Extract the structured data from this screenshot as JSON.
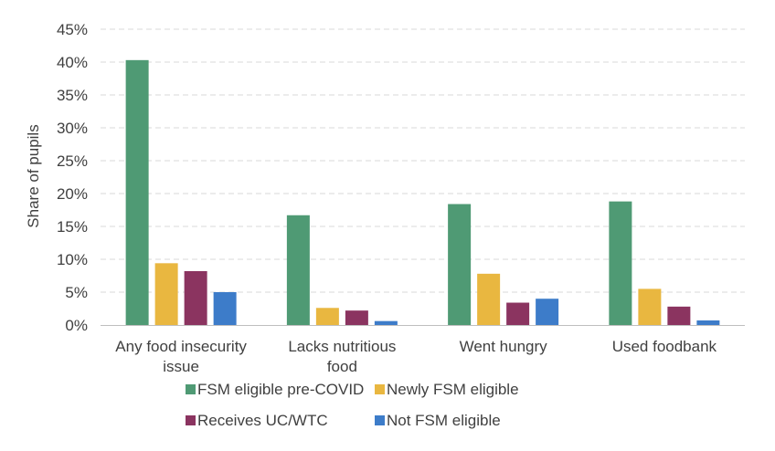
{
  "chart_data": {
    "type": "bar",
    "title": "",
    "xlabel": "",
    "ylabel": "Share of pupils",
    "ylim": [
      0,
      45
    ],
    "y_ticks": [
      "0%",
      "5%",
      "10%",
      "15%",
      "20%",
      "25%",
      "30%",
      "35%",
      "40%",
      "45%"
    ],
    "grid": "horizontal dashed",
    "legend_position": "bottom",
    "categories": [
      [
        "Any food insecurity",
        "issue"
      ],
      [
        "Lacks nutritious",
        "food"
      ],
      [
        "Went hungry"
      ],
      [
        "Used foodbank"
      ]
    ],
    "series": [
      {
        "name": "FSM eligible pre-COVID",
        "color": "#4f9a74",
        "values": [
          40.3,
          16.7,
          18.4,
          18.8
        ]
      },
      {
        "name": "Newly FSM eligible",
        "color": "#e9b740",
        "values": [
          9.4,
          2.6,
          7.8,
          5.5
        ]
      },
      {
        "name": "Receives UC/WTC",
        "color": "#8b3460",
        "values": [
          8.2,
          2.2,
          3.4,
          2.8
        ]
      },
      {
        "name": "Not FSM eligible",
        "color": "#3d7cc9",
        "values": [
          5.0,
          0.6,
          4.0,
          0.7
        ]
      }
    ]
  }
}
